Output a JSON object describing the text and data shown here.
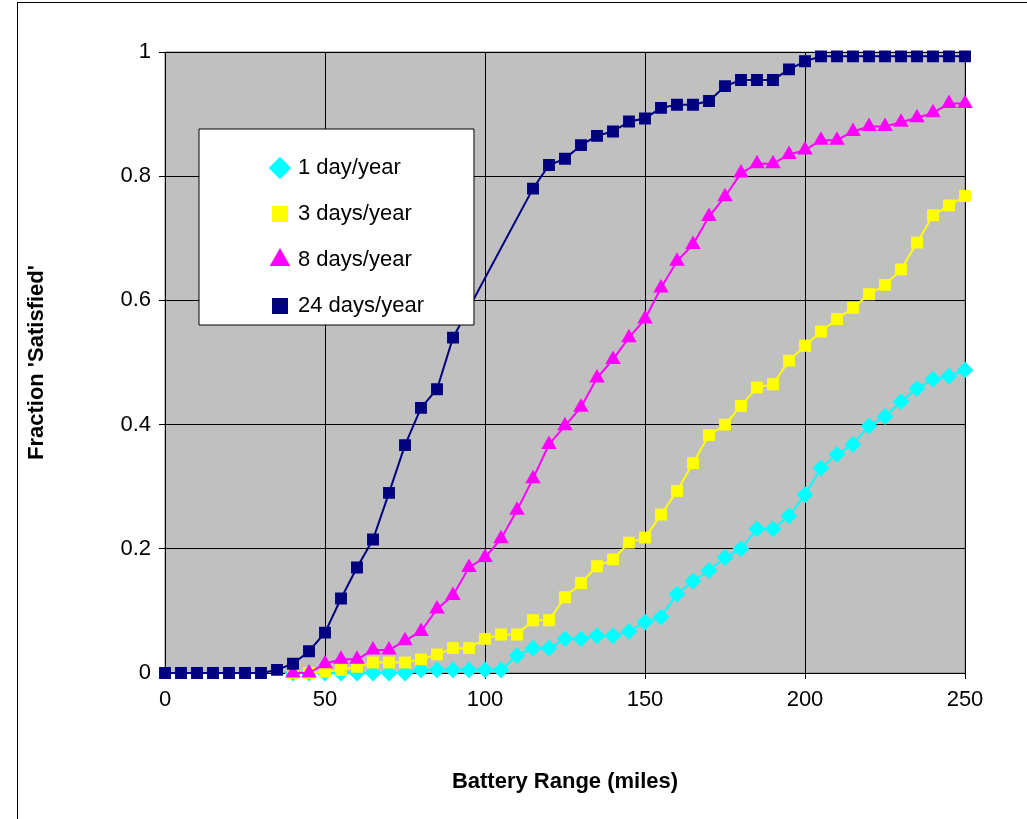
{
  "chart_data": {
    "type": "line",
    "xlabel": "Battery Range (miles)",
    "ylabel": "Fraction 'Satisfied'",
    "x": [
      0,
      5,
      10,
      15,
      20,
      25,
      30,
      35,
      40,
      45,
      50,
      55,
      60,
      65,
      70,
      75,
      80,
      85,
      90,
      95,
      100,
      105,
      110,
      115,
      120,
      125,
      130,
      135,
      140,
      145,
      150,
      155,
      160,
      165,
      170,
      175,
      180,
      185,
      190,
      195,
      200,
      205,
      210,
      215,
      220,
      225,
      230,
      235,
      240,
      245,
      250
    ],
    "xlim": [
      0,
      250
    ],
    "xticks": [
      0,
      50,
      100,
      150,
      200,
      250
    ],
    "ylim": [
      0,
      1
    ],
    "yticks": [
      0,
      0.2,
      0.4,
      0.6,
      0.8,
      1
    ],
    "grid": true,
    "legend": "top left",
    "line_style": "solid",
    "series": [
      {
        "name": "1 day/year",
        "color": "#00ffff",
        "marker": "diamond",
        "values": [
          null,
          null,
          null,
          null,
          null,
          null,
          null,
          null,
          0,
          0,
          0,
          0,
          0,
          0,
          0,
          0,
          0.005,
          0.005,
          0.005,
          0.005,
          0.005,
          0.005,
          0.028,
          0.04,
          0.04,
          0.055,
          0.055,
          0.06,
          0.06,
          0.067,
          0.082,
          0.09,
          0.127,
          0.148,
          0.165,
          0.186,
          0.2,
          0.232,
          0.232,
          0.253,
          0.287,
          0.33,
          0.352,
          0.368,
          0.398,
          0.413,
          0.437,
          0.458,
          0.473,
          0.478,
          0.488
        ]
      },
      {
        "name": "3 days/year",
        "color": "#ffff00",
        "marker": "square",
        "values": [
          null,
          null,
          null,
          null,
          null,
          null,
          null,
          null,
          0,
          0,
          0.002,
          0.005,
          0.01,
          0.017,
          0.017,
          0.017,
          0.022,
          0.03,
          0.04,
          0.04,
          0.055,
          0.062,
          0.062,
          0.085,
          0.085,
          0.122,
          0.145,
          0.172,
          0.183,
          0.21,
          0.218,
          0.255,
          0.293,
          0.338,
          0.383,
          0.4,
          0.43,
          0.46,
          0.465,
          0.503,
          0.527,
          0.55,
          0.57,
          0.588,
          0.61,
          0.625,
          0.65,
          0.693,
          0.737,
          0.753,
          0.768
        ]
      },
      {
        "name": "8 days/year",
        "color": "#ff00ff",
        "marker": "triangle",
        "values": [
          null,
          null,
          null,
          null,
          null,
          null,
          null,
          null,
          0,
          0,
          0.015,
          0.022,
          0.022,
          0.037,
          0.037,
          0.052,
          0.067,
          0.103,
          0.125,
          0.17,
          0.186,
          0.216,
          0.262,
          0.313,
          0.368,
          0.398,
          0.428,
          0.475,
          0.505,
          0.54,
          0.57,
          0.62,
          0.663,
          0.69,
          0.735,
          0.767,
          0.805,
          0.82,
          0.82,
          0.835,
          0.842,
          0.858,
          0.858,
          0.872,
          0.88,
          0.88,
          0.887,
          0.894,
          0.902,
          0.917,
          0.917
        ]
      },
      {
        "name": "24 days/year",
        "color": "#000080",
        "marker": "square",
        "values": [
          0,
          0,
          0,
          0,
          0,
          0,
          0,
          0.005,
          0.015,
          0.035,
          0.065,
          0.12,
          0.17,
          0.215,
          0.29,
          0.367,
          0.427,
          0.457,
          0.54,
          null,
          null,
          null,
          null,
          0.78,
          0.818,
          0.828,
          0.85,
          0.865,
          0.872,
          0.888,
          0.893,
          0.91,
          0.915,
          0.915,
          0.921,
          0.945,
          0.955,
          0.955,
          0.955,
          0.972,
          0.985,
          0.993,
          0.993,
          0.993,
          0.993,
          0.993,
          0.993,
          0.993,
          0.993,
          0.993,
          0.993
        ]
      }
    ]
  }
}
